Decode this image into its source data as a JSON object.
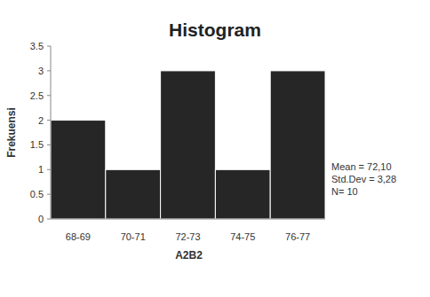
{
  "chart_data": {
    "type": "bar",
    "title": "Histogram",
    "x_label": "A2B2",
    "y_label": "Frekuensi",
    "categories": [
      "68-69",
      "70-71",
      "72-73",
      "74-75",
      "76-77"
    ],
    "values": [
      2,
      1,
      3,
      1,
      3
    ],
    "color": "#262626",
    "ylim": [
      0,
      3.5
    ],
    "yticks": [
      0,
      0.5,
      1,
      1.5,
      2,
      2.5,
      3,
      3.5
    ],
    "grid": false,
    "annotations": [
      "Mean = 72,10",
      "Std.Dev = 3,28",
      "N= 10"
    ]
  }
}
